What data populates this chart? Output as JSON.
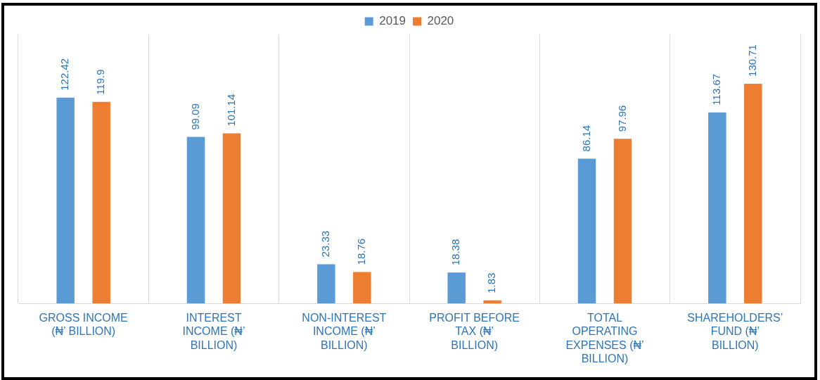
{
  "chart_data": {
    "type": "bar",
    "categories": [
      "GROSS INCOME (₦’ BILLION)",
      "INTEREST INCOME (₦’ BILLION)",
      "NON-INTEREST INCOME (₦’ BILLION)",
      "PROFIT BEFORE TAX (₦’ BILLION)",
      "TOTAL OPERATING EXPENSES (₦’ BILLION)",
      "SHAREHOLDERS’ FUND (₦’ BILLION)"
    ],
    "series": [
      {
        "name": "2019",
        "color": "#5b9bd5",
        "values": [
          122.42,
          99.09,
          23.33,
          18.38,
          86.14,
          113.67
        ]
      },
      {
        "name": "2020",
        "color": "#ed7d31",
        "values": [
          119.9,
          101.14,
          18.76,
          1.83,
          97.96,
          130.71
        ]
      }
    ],
    "data_labels": true,
    "grid": "x",
    "legend": "top",
    "tick_labels": "x"
  }
}
